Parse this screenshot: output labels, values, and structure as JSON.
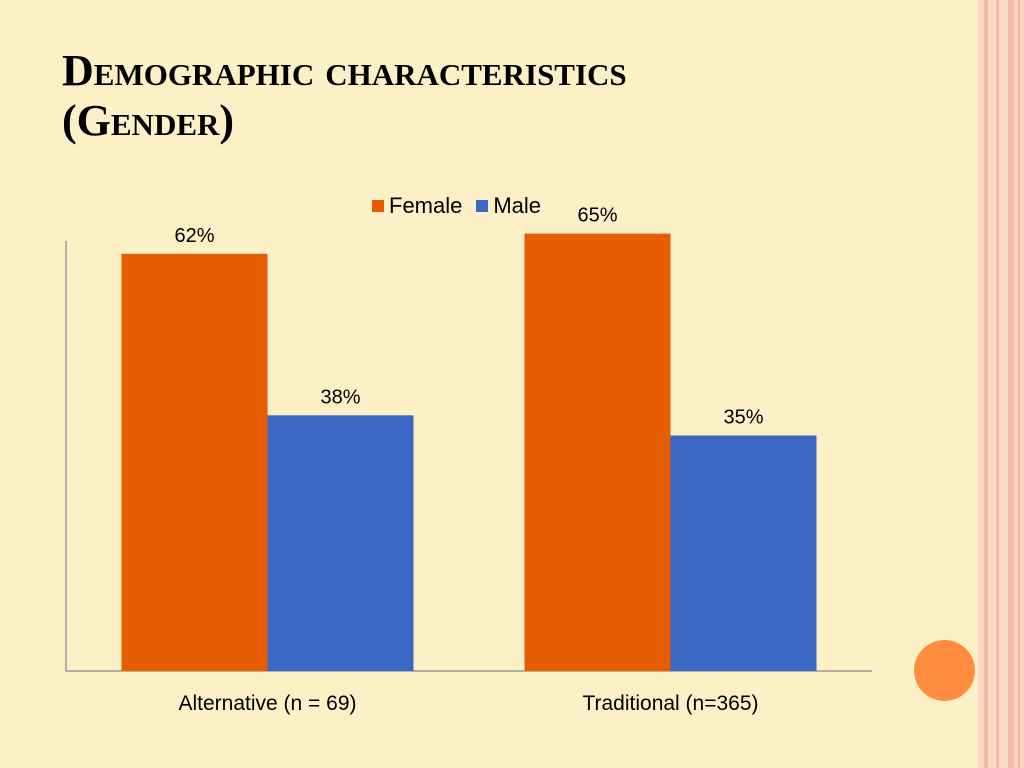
{
  "slide": {
    "title": "Demographic characteristics\n(Gender)"
  },
  "colors": {
    "background": "#fcf0c7",
    "female": "#e65c00",
    "male": "#3a68c3",
    "accent_dot": "#ff8c3f",
    "stripe_dark": "#f6b9a5",
    "stripe_light": "#fbd9c5"
  },
  "chart_data": {
    "type": "bar",
    "categories": [
      "Alternative (n = 69)",
      "Traditional (n=365)"
    ],
    "series": [
      {
        "name": "Female",
        "values": [
          62,
          65
        ],
        "labels": [
          "62%",
          "65%"
        ]
      },
      {
        "name": "Male",
        "values": [
          38,
          35
        ],
        "labels": [
          "38%",
          "35%"
        ]
      }
    ],
    "ylim": [
      0,
      70
    ],
    "legend": "top-center",
    "grid": false
  }
}
